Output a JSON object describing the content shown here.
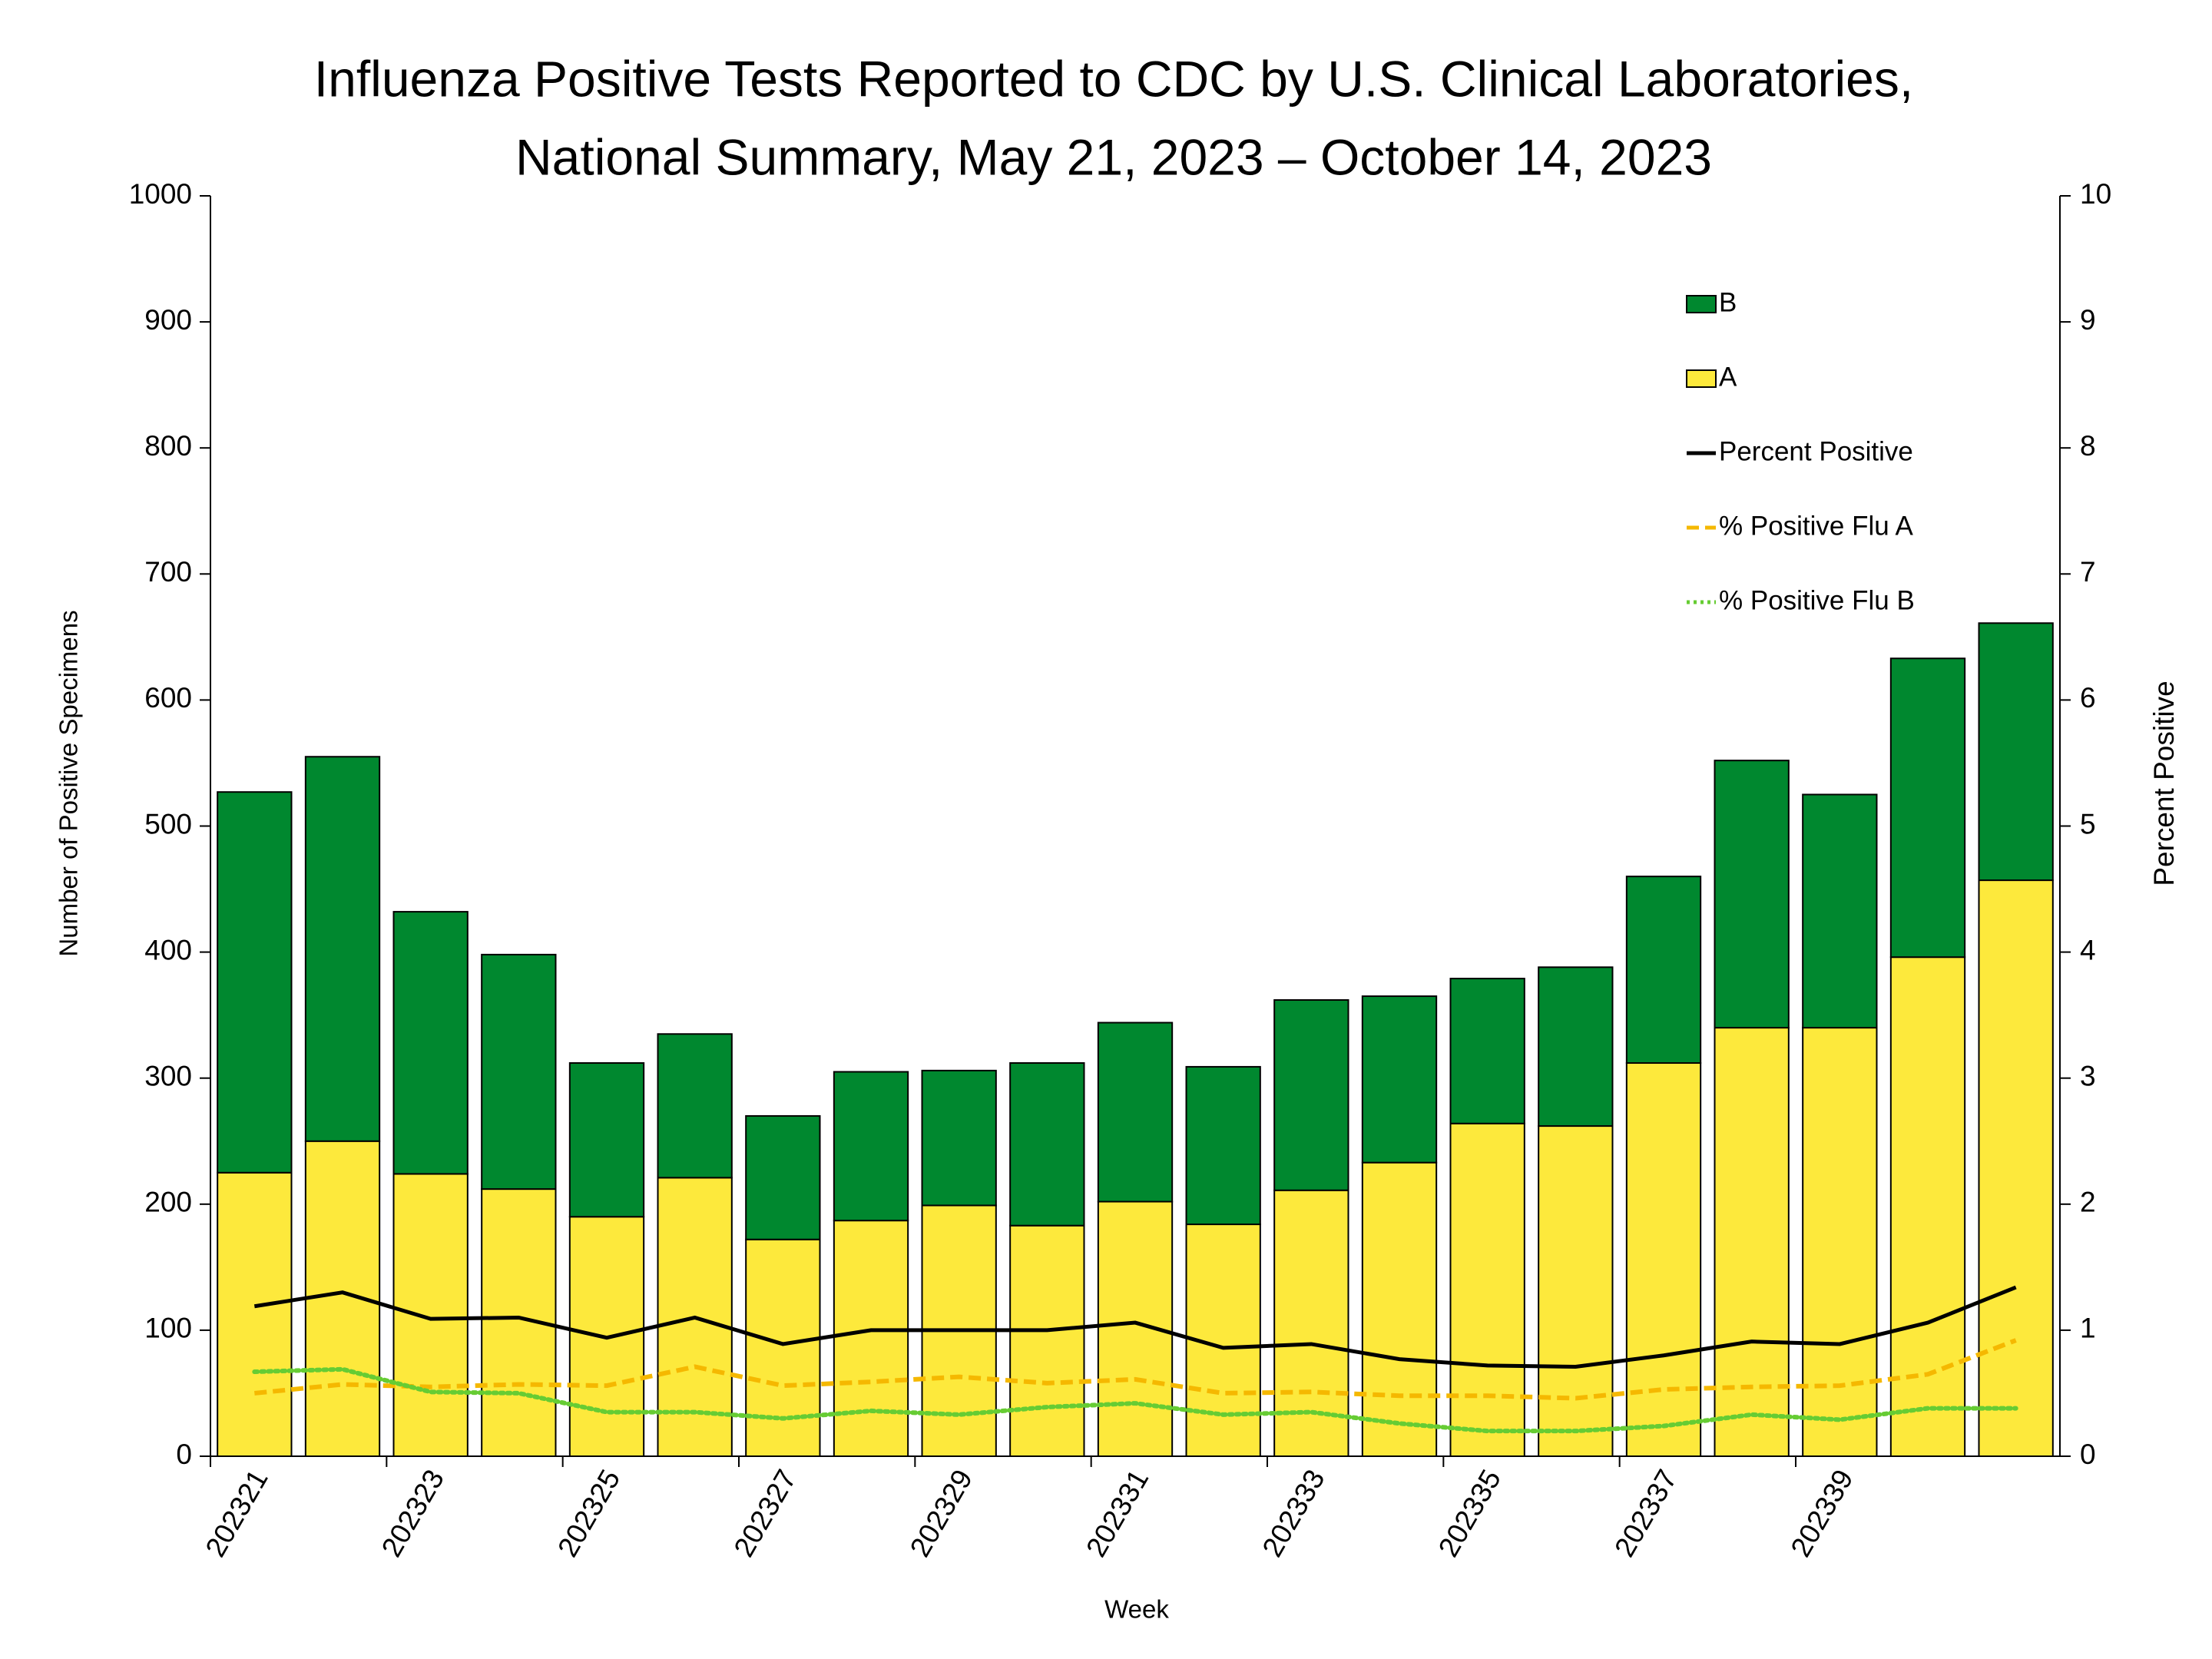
{
  "chart_data": {
    "type": "bar",
    "title": [
      "Influenza Positive Tests Reported to CDC by U.S. Clinical Laboratories,",
      "National Summary, May 21, 2023 – October 14, 2023"
    ],
    "x_label": "Week",
    "y_label": "Number of Positive Specimens",
    "y2_label": "Percent Positive",
    "stacked": true,
    "categories": [
      "202321",
      null,
      "202323",
      null,
      "202325",
      null,
      "202327",
      null,
      "202329",
      null,
      "202331",
      null,
      "202333",
      null,
      "202335",
      null,
      "202337",
      null,
      "202339",
      null,
      null
    ],
    "series": [
      {
        "name": "A",
        "type": "bar",
        "color": "#fde93c",
        "values": [
          225,
          250,
          224,
          212,
          190,
          221,
          172,
          187,
          199,
          183,
          202,
          184,
          211,
          233,
          264,
          262,
          312,
          340,
          340,
          396,
          457
        ]
      },
      {
        "name": "B",
        "type": "bar",
        "color": "#00882f",
        "values": [
          302,
          305,
          208,
          186,
          122,
          114,
          98,
          118,
          107,
          129,
          142,
          125,
          151,
          132,
          115,
          126,
          148,
          212,
          185,
          237,
          204
        ]
      },
      {
        "name": "Percent Positive",
        "type": "line",
        "axis": "y2",
        "color": "#000000",
        "dash": "solid",
        "values": [
          1.19,
          1.3,
          1.09,
          1.1,
          0.94,
          1.1,
          0.89,
          1.0,
          1.0,
          1.0,
          1.06,
          0.86,
          0.89,
          0.77,
          0.72,
          0.71,
          0.8,
          0.91,
          0.89,
          1.06,
          1.34
        ]
      },
      {
        "name": "% Positive Flu A",
        "type": "line",
        "axis": "y2",
        "color": "#f5b800",
        "dash": "dashed",
        "values": [
          0.5,
          0.57,
          0.55,
          0.57,
          0.56,
          0.71,
          0.56,
          0.59,
          0.63,
          0.58,
          0.61,
          0.5,
          0.51,
          0.48,
          0.48,
          0.46,
          0.53,
          0.55,
          0.56,
          0.65,
          0.92
        ]
      },
      {
        "name": "% Positive Flu B",
        "type": "line",
        "axis": "y2",
        "color": "#66cc33",
        "dash": "dotted",
        "values": [
          0.67,
          0.69,
          0.51,
          0.5,
          0.35,
          0.35,
          0.3,
          0.36,
          0.33,
          0.39,
          0.42,
          0.33,
          0.35,
          0.26,
          0.2,
          0.2,
          0.24,
          0.33,
          0.29,
          0.38,
          0.38
        ]
      }
    ],
    "ylim": [
      0,
      1000
    ],
    "yticks": [
      0,
      100,
      200,
      300,
      400,
      500,
      600,
      700,
      800,
      900,
      1000
    ],
    "y2lim": [
      0,
      10
    ],
    "y2ticks": [
      0,
      1,
      2,
      3,
      4,
      5,
      6,
      7,
      8,
      9,
      10
    ],
    "grid": false,
    "legend": "upper right"
  }
}
